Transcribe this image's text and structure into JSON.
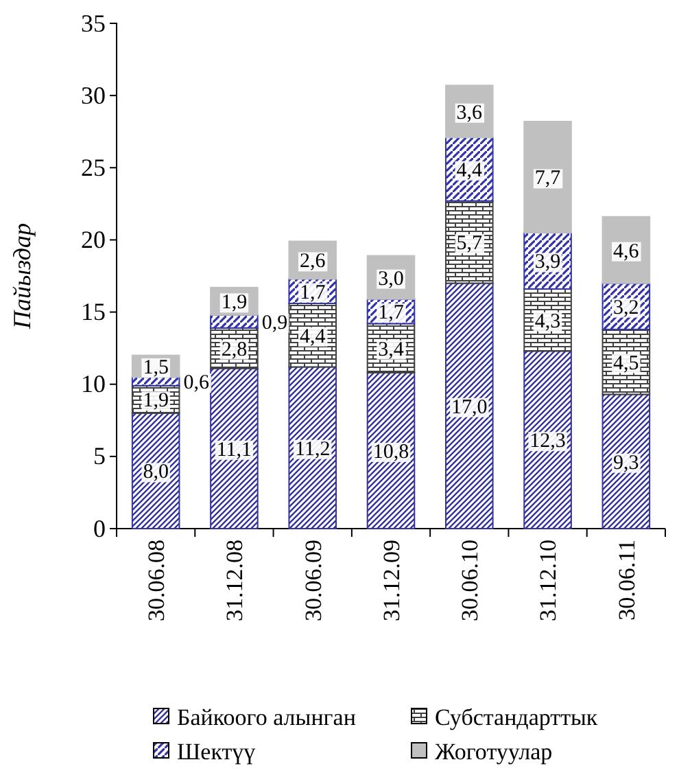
{
  "chart_data": {
    "type": "bar",
    "stacked": true,
    "ylabel": "Пайыздар",
    "categories": [
      "30.06.08",
      "31.12.08",
      "30.06.09",
      "31.12.09",
      "30.06.10",
      "31.12.10",
      "30.06.11"
    ],
    "ylim": [
      0,
      35
    ],
    "yticks": [
      0,
      5,
      10,
      15,
      20,
      25,
      30,
      35
    ],
    "legend": "bottom",
    "grid": false,
    "series": [
      {
        "name": "Байкоого алынган",
        "color": "#333399",
        "values": [
          8.0,
          11.1,
          11.2,
          10.8,
          17.0,
          12.3,
          9.3
        ],
        "value_labels": [
          "8,0",
          "11,1",
          "11,2",
          "10,8",
          "17,0",
          "12,3",
          "9,3"
        ]
      },
      {
        "name": "Субстандарттык",
        "color": "#404040",
        "values": [
          1.9,
          2.8,
          4.4,
          3.4,
          5.7,
          4.3,
          4.5
        ],
        "value_labels": [
          "1,9",
          "2,8",
          "4,4",
          "3,4",
          "5,7",
          "4,3",
          "4,5"
        ]
      },
      {
        "name": "Шектүү",
        "color": "#3333aa",
        "values": [
          0.6,
          0.9,
          1.7,
          1.7,
          4.4,
          3.9,
          3.2
        ],
        "value_labels": [
          "0,6",
          "0,9",
          "1,7",
          "1,7",
          "4,4",
          "3,9",
          "3,2"
        ]
      },
      {
        "name": "Жоготуулар",
        "color": "#c0c0c0",
        "values": [
          1.5,
          1.9,
          2.6,
          3.0,
          3.6,
          7.7,
          4.6
        ],
        "value_labels": [
          "1,5",
          "1,9",
          "2,6",
          "3,0",
          "3,6",
          "7,7",
          "4,6"
        ]
      }
    ]
  }
}
